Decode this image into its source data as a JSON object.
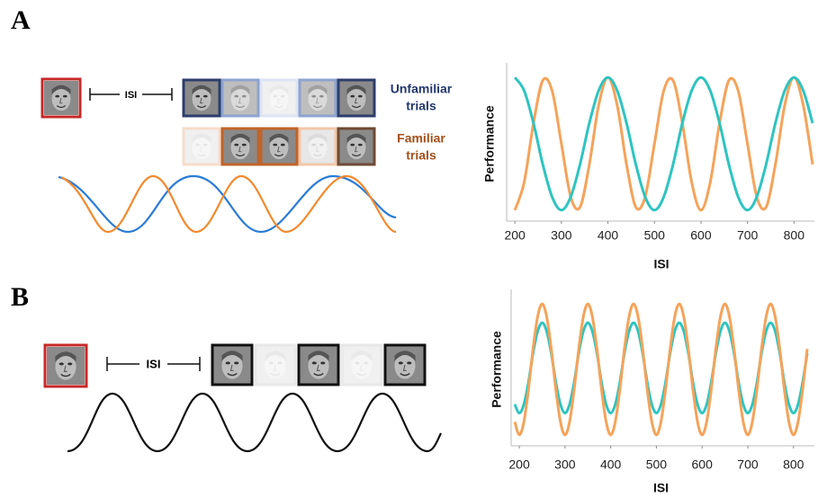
{
  "figure": {
    "panels": [
      {
        "label": "A",
        "isi_label": "ISI",
        "trial_labels": [
          [
            "Unfamiliar",
            "trials"
          ],
          [
            "Familiar",
            "trials"
          ]
        ]
      },
      {
        "label": "B",
        "isi_label": "ISI"
      }
    ]
  },
  "chart_data": [
    {
      "type": "line",
      "xlabel": "ISI",
      "ylabel": "Performance",
      "xlim": [
        190,
        840
      ],
      "xticks": [
        200,
        300,
        400,
        500,
        600,
        700,
        800
      ],
      "ylim": [
        0,
        1
      ],
      "x": [
        200,
        220,
        240,
        260,
        280,
        300,
        320,
        340,
        360,
        380,
        400,
        420,
        440,
        460,
        480,
        500,
        520,
        540,
        560,
        580,
        600,
        620,
        640,
        660,
        680,
        700,
        720,
        740,
        760,
        780,
        800,
        820,
        840
      ],
      "series": [
        {
          "color": "#f5a35a",
          "values": [
            0.05,
            0.24,
            0.64,
            0.93,
            0.86,
            0.5,
            0.14,
            0.07,
            0.36,
            0.76,
            0.95,
            0.76,
            0.36,
            0.07,
            0.14,
            0.5,
            0.86,
            0.93,
            0.64,
            0.24,
            0.05,
            0.24,
            0.64,
            0.93,
            0.86,
            0.5,
            0.14,
            0.07,
            0.36,
            0.76,
            0.95,
            0.76,
            0.36
          ]
        },
        {
          "color": "#2ec4c0",
          "values": [
            0.95,
            0.86,
            0.64,
            0.36,
            0.14,
            0.05,
            0.14,
            0.36,
            0.64,
            0.86,
            0.95,
            0.86,
            0.64,
            0.36,
            0.14,
            0.05,
            0.14,
            0.36,
            0.64,
            0.86,
            0.95,
            0.86,
            0.64,
            0.36,
            0.14,
            0.05,
            0.14,
            0.36,
            0.64,
            0.86,
            0.95,
            0.86,
            0.64
          ]
        }
      ]
    },
    {
      "type": "line",
      "xlabel": "ISI",
      "ylabel": "Performance",
      "xlim": [
        190,
        830
      ],
      "xticks": [
        200,
        300,
        400,
        500,
        600,
        700,
        800
      ],
      "ylim": [
        0,
        1
      ],
      "x": [
        190,
        200,
        210,
        220,
        230,
        240,
        250,
        260,
        270,
        280,
        290,
        300,
        310,
        320,
        330,
        340,
        350,
        360,
        370,
        380,
        390,
        400,
        410,
        420,
        430,
        440,
        450,
        460,
        470,
        480,
        490,
        500,
        510,
        520,
        530,
        540,
        550,
        560,
        570,
        580,
        590,
        600,
        610,
        620,
        630,
        640,
        650,
        660,
        670,
        680,
        690,
        700,
        710,
        720,
        730,
        740,
        750,
        760,
        770,
        780,
        790,
        800,
        810,
        820,
        830
      ],
      "series": [
        {
          "color": "#2ec4c0",
          "values": [
            0.26,
            0.2,
            0.26,
            0.41,
            0.61,
            0.76,
            0.82,
            0.76,
            0.61,
            0.41,
            0.26,
            0.2,
            0.26,
            0.41,
            0.61,
            0.76,
            0.82,
            0.76,
            0.61,
            0.41,
            0.26,
            0.2,
            0.26,
            0.41,
            0.61,
            0.76,
            0.82,
            0.76,
            0.61,
            0.41,
            0.26,
            0.2,
            0.26,
            0.41,
            0.61,
            0.76,
            0.82,
            0.76,
            0.61,
            0.41,
            0.26,
            0.2,
            0.26,
            0.41,
            0.61,
            0.76,
            0.82,
            0.76,
            0.61,
            0.41,
            0.26,
            0.2,
            0.26,
            0.41,
            0.61,
            0.76,
            0.82,
            0.76,
            0.61,
            0.41,
            0.26,
            0.2,
            0.26,
            0.41,
            0.61
          ]
        },
        {
          "color": "#f5a35a",
          "values": [
            0.14,
            0.05,
            0.14,
            0.36,
            0.64,
            0.86,
            0.95,
            0.86,
            0.64,
            0.36,
            0.14,
            0.05,
            0.14,
            0.36,
            0.64,
            0.86,
            0.95,
            0.86,
            0.64,
            0.36,
            0.14,
            0.05,
            0.14,
            0.36,
            0.64,
            0.86,
            0.95,
            0.86,
            0.64,
            0.36,
            0.14,
            0.05,
            0.14,
            0.36,
            0.64,
            0.86,
            0.95,
            0.86,
            0.64,
            0.36,
            0.14,
            0.05,
            0.14,
            0.36,
            0.64,
            0.86,
            0.95,
            0.86,
            0.64,
            0.36,
            0.14,
            0.05,
            0.14,
            0.36,
            0.64,
            0.86,
            0.95,
            0.86,
            0.64,
            0.36,
            0.14,
            0.05,
            0.14,
            0.36,
            0.64
          ]
        }
      ]
    }
  ]
}
